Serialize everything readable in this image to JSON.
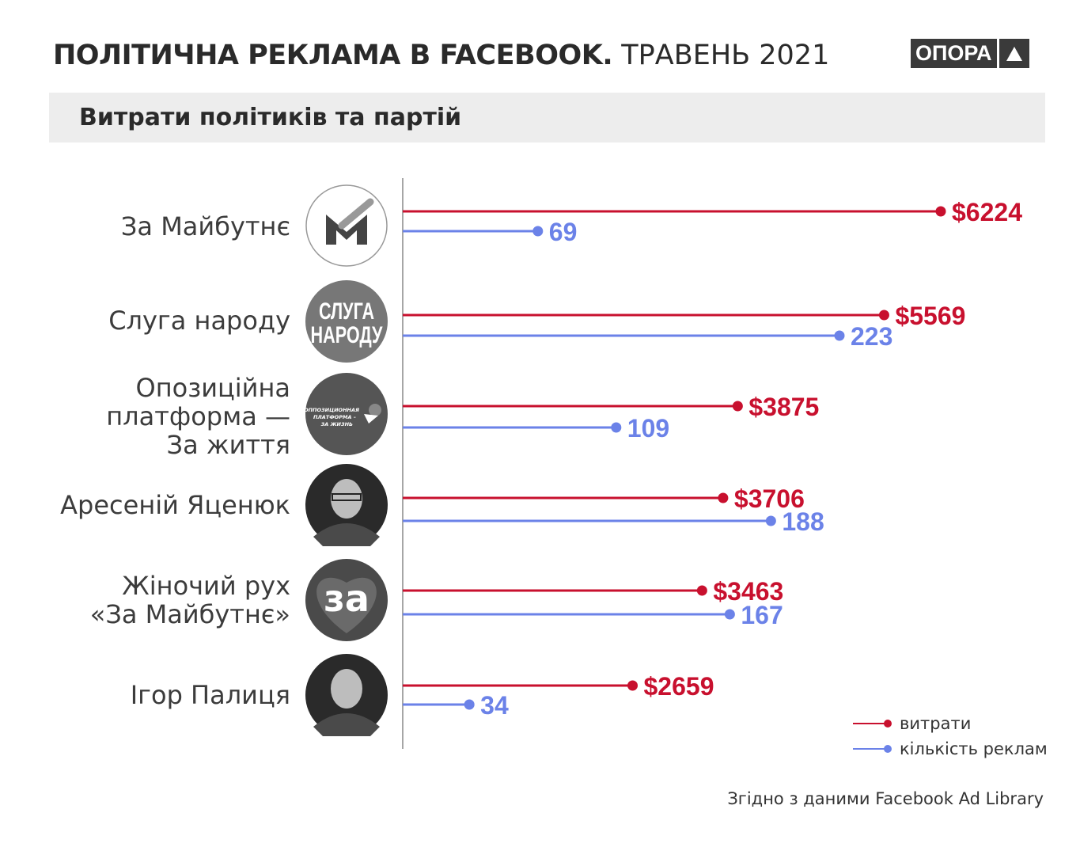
{
  "title_bold": "ПОЛІТИЧНА РЕКЛАМА В FACEBOOK.",
  "title_light": "ТРАВЕНЬ 2021",
  "brand": "ОПОРА",
  "subtitle": "Витрати політиків та партій",
  "source": "Згідно з даними Facebook Ad Library",
  "logos": {
    "sluha": [
      "СЛУГА",
      "НАРОДУ"
    ],
    "opzzh": [
      "ОППОЗИЦИОННАЯ",
      "ПЛАТФОРМА –",
      "ЗА ЖИЗНЬ"
    ],
    "za": "за"
  },
  "chart_data": {
    "type": "bar",
    "title": "Витрати політиків та партій",
    "categories": [
      "За Майбутнє",
      "Слуга народу",
      "Опозиційна платформа — За життя",
      "Аресеній Яценюк",
      "Жіночий рух «За Майбутнє»",
      "Ігор Палиця"
    ],
    "category_lines": [
      [
        "За Майбутнє"
      ],
      [
        "Слуга народу"
      ],
      [
        "Опозиційна",
        "платформа —",
        "За життя"
      ],
      [
        "Аресеній Яценюк"
      ],
      [
        "Жіночий рух",
        "«За Майбутнє»"
      ],
      [
        "Ігор Палиця"
      ]
    ],
    "series": [
      {
        "name": "витрати",
        "color": "#c8102e",
        "prefix": "$",
        "values": [
          6224,
          5569,
          3875,
          3706,
          3463,
          2659
        ]
      },
      {
        "name": "кількість реклам",
        "color": "#6b82e8",
        "prefix": "",
        "values": [
          69,
          223,
          109,
          188,
          167,
          34
        ]
      }
    ],
    "legend": "bottom-right"
  }
}
